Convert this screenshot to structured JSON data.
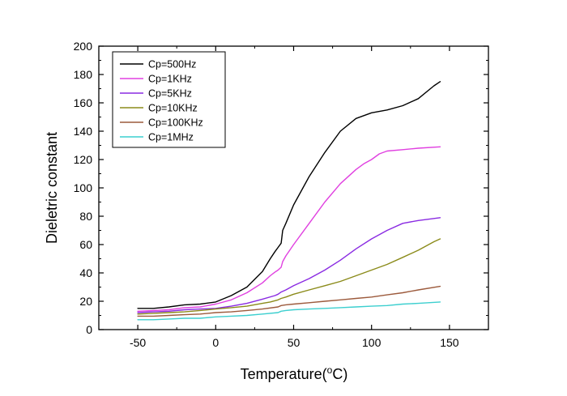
{
  "chart_data": {
    "type": "line",
    "title": "",
    "xlabel": "Temperature(",
    "xlabel_degree": "o",
    "xlabel_unit": "C)",
    "ylabel": "Dieletric constant",
    "xlim": [
      -75,
      175
    ],
    "ylim": [
      0,
      200
    ],
    "xticks": [
      -50,
      0,
      50,
      100,
      150
    ],
    "yticks": [
      0,
      20,
      40,
      60,
      80,
      100,
      120,
      140,
      160,
      180,
      200
    ],
    "xtick_labels": [
      "-50",
      "0",
      "50",
      "100",
      "150"
    ],
    "ytick_labels": [
      "0",
      "20",
      "40",
      "60",
      "80",
      "100",
      "120",
      "140",
      "160",
      "180",
      "200"
    ],
    "grid": false,
    "legend_position": "top-left",
    "series": [
      {
        "name": "Cp=500Hz",
        "color": "#000000",
        "x": [
          -50,
          -40,
          -30,
          -20,
          -10,
          0,
          10,
          20,
          30,
          35,
          38,
          40,
          42,
          43,
          45,
          50,
          60,
          70,
          80,
          90,
          100,
          110,
          120,
          130,
          140,
          144
        ],
        "y": [
          15,
          15,
          16,
          17.5,
          18,
          19.5,
          24,
          30,
          41,
          50,
          55,
          58,
          61,
          70,
          75,
          88,
          108,
          125,
          140,
          149,
          153,
          155,
          158,
          163,
          172,
          175
        ]
      },
      {
        "name": "Cp=1KHz",
        "color": "#e040e0",
        "x": [
          -50,
          -40,
          -30,
          -20,
          -10,
          0,
          10,
          20,
          30,
          35,
          38,
          40,
          42,
          43,
          45,
          50,
          60,
          70,
          80,
          90,
          95,
          100,
          105,
          110,
          120,
          130,
          144
        ],
        "y": [
          13,
          13.5,
          14,
          15.5,
          16,
          18,
          21,
          26,
          33,
          38,
          40.5,
          42,
          44,
          48,
          52,
          60,
          75,
          90,
          103,
          113,
          117,
          120,
          124,
          126,
          127,
          128,
          129
        ]
      },
      {
        "name": "Cp=5KHz",
        "color": "#8a2be2",
        "x": [
          -50,
          -40,
          -30,
          -20,
          -10,
          0,
          10,
          20,
          30,
          38,
          40,
          42,
          45,
          50,
          60,
          70,
          80,
          90,
          100,
          110,
          120,
          130,
          144
        ],
        "y": [
          12,
          12.5,
          13,
          14,
          14.5,
          15,
          16.5,
          18.5,
          21.5,
          24,
          25,
          26.5,
          28,
          31,
          36,
          42,
          49,
          57,
          64,
          70,
          75,
          77,
          79
        ]
      },
      {
        "name": "Cp=10KHz",
        "color": "#8b8b1a",
        "x": [
          -50,
          -40,
          -30,
          -20,
          -10,
          0,
          10,
          20,
          30,
          35,
          40,
          42,
          45,
          50,
          60,
          70,
          80,
          90,
          100,
          110,
          120,
          130,
          140,
          144
        ],
        "y": [
          11,
          11.5,
          12,
          12.5,
          13.5,
          14.5,
          15.5,
          16.5,
          18.5,
          19.5,
          21,
          22,
          23,
          25,
          28,
          31,
          34,
          38,
          42,
          46,
          51,
          56,
          62,
          64
        ]
      },
      {
        "name": "Cp=100KHz",
        "color": "#9c5a3c",
        "x": [
          -50,
          -40,
          -30,
          -20,
          -10,
          0,
          10,
          20,
          30,
          40,
          42,
          45,
          50,
          60,
          70,
          80,
          90,
          100,
          110,
          120,
          130,
          144
        ],
        "y": [
          9.5,
          9.5,
          10,
          10.5,
          11,
          12,
          12.5,
          13.5,
          14.5,
          16,
          17,
          17.5,
          18,
          19,
          20,
          21,
          22,
          23,
          24.5,
          26,
          28,
          30.5
        ]
      },
      {
        "name": "Cp=1MHz",
        "color": "#3ccfcf",
        "x": [
          -50,
          -40,
          -30,
          -20,
          -10,
          0,
          10,
          20,
          30,
          40,
          42,
          45,
          50,
          60,
          70,
          80,
          90,
          100,
          110,
          120,
          130,
          144
        ],
        "y": [
          7,
          7,
          7.5,
          8,
          8,
          9,
          9.5,
          10,
          11,
          12,
          13,
          13.5,
          14,
          14.5,
          15,
          15.5,
          16,
          16.5,
          17,
          18,
          18.5,
          19.5
        ]
      }
    ]
  }
}
